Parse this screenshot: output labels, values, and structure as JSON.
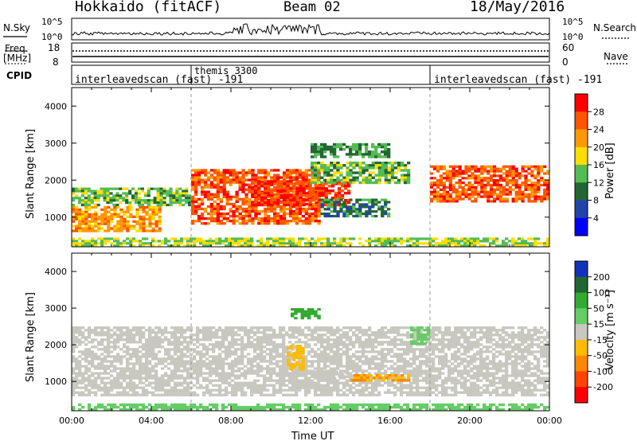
{
  "header": {
    "station": "Hokkaido (fitACF)",
    "beam": "Beam 02",
    "date": "18/May/2016"
  },
  "side_labels": {
    "nsky": "N.Sky",
    "freq_1": "Freq.",
    "freq_2": "[MHz]",
    "cpid": "CPID",
    "nsearch": "N.Search",
    "nave": "Nave"
  },
  "noise_panel": {
    "tick_top": "10^5",
    "tick_bottom": "10^0",
    "tick_top_r": "10^5",
    "tick_bottom_r": "10^0"
  },
  "freq_panel": {
    "ticks_left": [
      "18",
      "8"
    ],
    "ticks_right": [
      "60",
      "0"
    ]
  },
  "cpid_panel": {
    "segments": [
      {
        "label": "interleavedscan (fast) -191",
        "start_h": 0
      },
      {
        "label": "themis 3300",
        "start_h": 6
      },
      {
        "label": "interleavedscan (fast) -191",
        "start_h": 18
      }
    ]
  },
  "colorbars": {
    "power": {
      "title": "Power [dB]",
      "ticks": [
        "28",
        "24",
        "20",
        "16",
        "12",
        "8",
        "4"
      ],
      "colors": [
        "#ff0000",
        "#ff5500",
        "#ff9900",
        "#ffdd00",
        "#55bb55",
        "#226633",
        "#2244aa",
        "#0000ff"
      ]
    },
    "velocity": {
      "title": "Velocity [m s⁻¹]",
      "ticks": [
        "200",
        "100",
        "50",
        "15",
        "-15",
        "-50",
        "-100",
        "-200"
      ],
      "colors": [
        "#1133bb",
        "#226633",
        "#33aa33",
        "#66cc66",
        "#c8c8c0",
        "#ffbb00",
        "#ff8800",
        "#ff4400",
        "#ff0000"
      ]
    }
  },
  "axes": {
    "ylabel": "Slant Range [km]",
    "xlabel": "Time UT",
    "yticks": [
      "1000",
      "2000",
      "3000",
      "4000"
    ],
    "xticks": [
      "00:00",
      "04:00",
      "08:00",
      "12:00",
      "16:00",
      "20:00",
      "00:00"
    ]
  },
  "chart_data": {
    "type": "heatmap",
    "x_unit": "hours UT",
    "xlim": [
      0,
      24
    ],
    "ylim": [
      200,
      4500
    ],
    "xticks": [
      "00:00",
      "04:00",
      "08:00",
      "12:00",
      "16:00",
      "20:00",
      "00:00"
    ],
    "yticks": [
      1000,
      2000,
      3000,
      4000
    ],
    "cpid_change_hours": [
      6,
      18
    ],
    "panels": [
      {
        "name": "power",
        "unit": "dB",
        "scale_ticks": [
          4,
          8,
          12,
          16,
          20,
          24,
          28
        ],
        "regions": [
          {
            "x": [
              0,
              4.5
            ],
            "y": [
              600,
              1300
            ],
            "value": 22
          },
          {
            "x": [
              0,
              6
            ],
            "y": [
              1300,
              1800
            ],
            "value": 14
          },
          {
            "x": [
              6,
              12.5
            ],
            "y": [
              800,
              2300
            ],
            "value": 26
          },
          {
            "x": [
              9,
              14
            ],
            "y": [
              1300,
              2000
            ],
            "value": 28
          },
          {
            "x": [
              12,
              17
            ],
            "y": [
              1900,
              2500
            ],
            "value": 14
          },
          {
            "x": [
              12,
              16
            ],
            "y": [
              2600,
              3000
            ],
            "value": 12
          },
          {
            "x": [
              12.5,
              16
            ],
            "y": [
              1000,
              1500
            ],
            "value": 10
          },
          {
            "x": [
              18,
              24
            ],
            "y": [
              1400,
              2400
            ],
            "value": 26
          },
          {
            "x": [
              0,
              24
            ],
            "y": [
              200,
              450
            ],
            "value": 16
          }
        ]
      },
      {
        "name": "velocity",
        "unit": "m s^-1",
        "scale_ticks": [
          -200,
          -100,
          -50,
          -15,
          15,
          50,
          100,
          200
        ],
        "regions": [
          {
            "x": [
              0,
              24
            ],
            "y": [
              600,
              2500
            ],
            "value": 0
          },
          {
            "x": [
              11,
              12.5
            ],
            "y": [
              2700,
              3000
            ],
            "value": 70
          },
          {
            "x": [
              12,
              14
            ],
            "y": [
              1100,
              1300
            ],
            "value": 10
          },
          {
            "x": [
              14,
              17
            ],
            "y": [
              1000,
              1200
            ],
            "value": -50
          },
          {
            "x": [
              10.8,
              11.7
            ],
            "y": [
              1300,
              2000
            ],
            "value": -40
          },
          {
            "x": [
              17,
              18
            ],
            "y": [
              2000,
              2500
            ],
            "value": 40
          },
          {
            "x": [
              0,
              24
            ],
            "y": [
              200,
              400
            ],
            "value": 30
          }
        ]
      }
    ]
  }
}
